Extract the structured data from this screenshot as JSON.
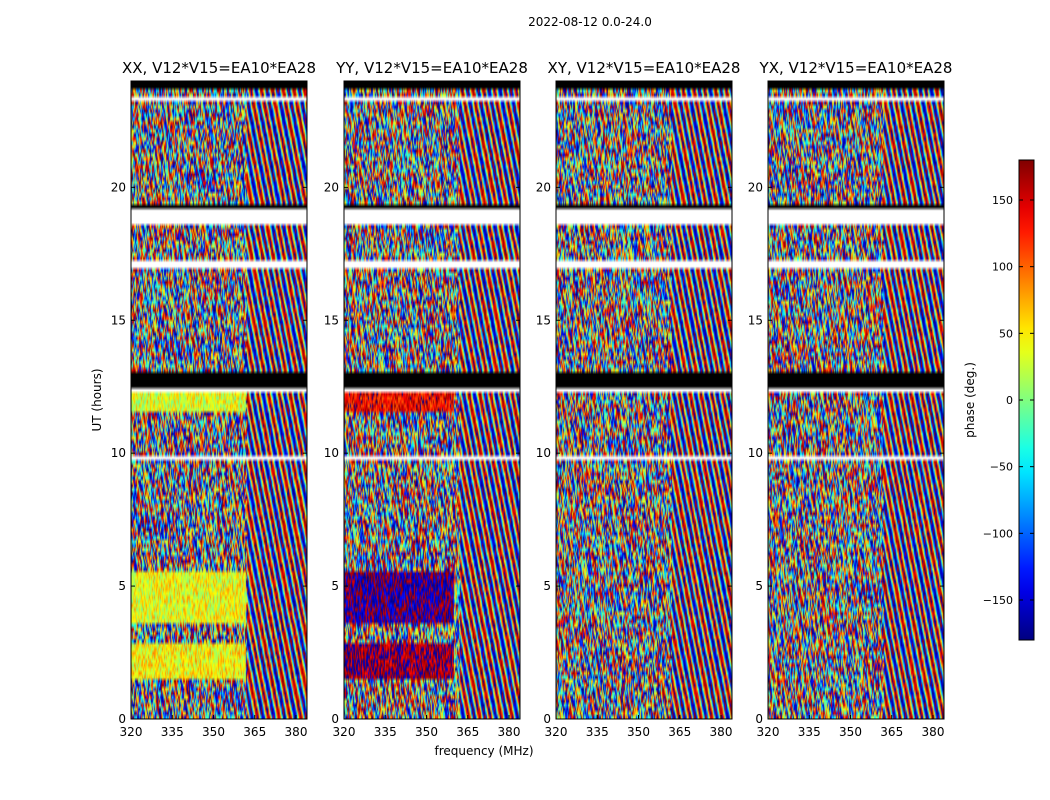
{
  "figure": {
    "suptitle": "2022-08-12 0.0-24.0"
  },
  "chart_data": {
    "type": "heatmap",
    "description_units": "phase (deg.)",
    "xlabel": "frequency (MHz)",
    "ylabel": "UT (hours)",
    "xlim": [
      320,
      384
    ],
    "ylim": [
      0,
      24
    ],
    "xticks": [
      320,
      335,
      350,
      365,
      380
    ],
    "yticks": [
      0,
      5,
      10,
      15,
      20
    ],
    "colorbar": {
      "label": "phase (deg.)",
      "range": [
        -180,
        180
      ],
      "ticks": [
        150,
        100,
        50,
        0,
        -50,
        -100,
        -150
      ],
      "tick_labels": [
        "150",
        "100",
        "50",
        "0",
        "−50",
        "−100",
        "−150"
      ],
      "colormap": "jet"
    },
    "panels": [
      {
        "title": "XX, V12*V15=EA10*EA28",
        "band_cut_mhz": 362,
        "coherent_ranges": [
          [
            1.5,
            2.9,
            45
          ],
          [
            3.6,
            5.5,
            40
          ],
          [
            11.6,
            12.3,
            35
          ]
        ]
      },
      {
        "title": "YY, V12*V15=EA10*EA28",
        "band_cut_mhz": 360,
        "coherent_ranges": [
          [
            1.5,
            2.9,
            170
          ],
          [
            3.6,
            5.5,
            -170
          ],
          [
            11.6,
            12.3,
            140
          ]
        ]
      },
      {
        "title": "XY, V12*V15=EA10*EA28",
        "band_cut_mhz": 0,
        "coherent_ranges": []
      },
      {
        "title": "YX, V12*V15=EA10*EA28",
        "band_cut_mhz": 0,
        "coherent_ranges": []
      }
    ],
    "gaps_hours": [
      [
        1.45,
        1.5
      ],
      [
        3.55,
        3.62
      ],
      [
        6.1,
        6.15
      ],
      [
        9.75,
        9.9
      ],
      [
        12.35,
        12.45
      ],
      [
        13.05,
        13.12
      ],
      [
        16.9,
        17.2
      ],
      [
        18.6,
        19.2
      ],
      [
        22.9,
        22.95
      ],
      [
        23.2,
        23.4
      ]
    ],
    "flagged_black_hours": [
      [
        12.45,
        13.0
      ],
      [
        19.2,
        19.4
      ],
      [
        23.7,
        24.0
      ]
    ]
  }
}
